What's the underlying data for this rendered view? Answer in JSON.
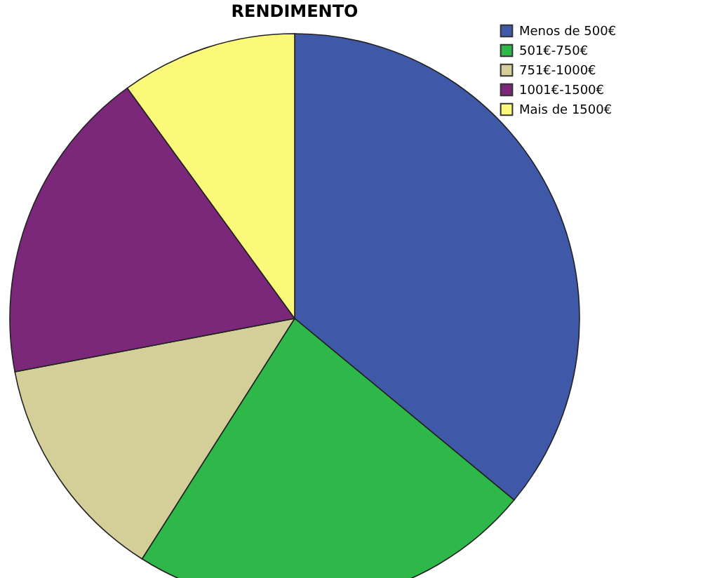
{
  "chart_data": {
    "type": "pie",
    "title": "RENDIMENTO",
    "categories": [
      "Menos de 500€",
      "501€-750€",
      "751€-1000€",
      "1001€-1500€",
      "Mais de 1500€"
    ],
    "values": [
      36,
      23,
      13,
      18,
      10
    ],
    "colors": [
      "#3f58a8",
      "#2fb84a",
      "#d4cf98",
      "#7b287a",
      "#fbf97a"
    ],
    "legend": "top right"
  }
}
